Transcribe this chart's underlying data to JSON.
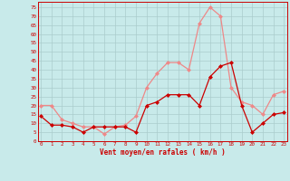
{
  "xlabel": "Vent moyen/en rafales ( km/h )",
  "xlabel_color": "#cc0000",
  "background_color": "#c8eaea",
  "grid_color": "#aacccc",
  "hours": [
    0,
    1,
    2,
    3,
    4,
    5,
    6,
    7,
    8,
    9,
    10,
    11,
    12,
    13,
    14,
    15,
    16,
    17,
    18,
    19,
    20,
    21,
    22,
    23
  ],
  "wind_mean": [
    14,
    9,
    9,
    8,
    5,
    8,
    8,
    8,
    8,
    5,
    20,
    22,
    26,
    26,
    26,
    20,
    36,
    42,
    44,
    20,
    5,
    10,
    15,
    16
  ],
  "wind_gust": [
    20,
    20,
    12,
    10,
    8,
    8,
    4,
    8,
    9,
    14,
    30,
    38,
    44,
    44,
    40,
    66,
    75,
    70,
    30,
    22,
    20,
    15,
    26,
    28
  ],
  "mean_color": "#cc0000",
  "gust_color": "#ee8888",
  "ylim": [
    0,
    78
  ],
  "yticks": [
    0,
    5,
    10,
    15,
    20,
    25,
    30,
    35,
    40,
    45,
    50,
    55,
    60,
    65,
    70,
    75
  ],
  "markersize": 2.0,
  "linewidth": 0.9
}
